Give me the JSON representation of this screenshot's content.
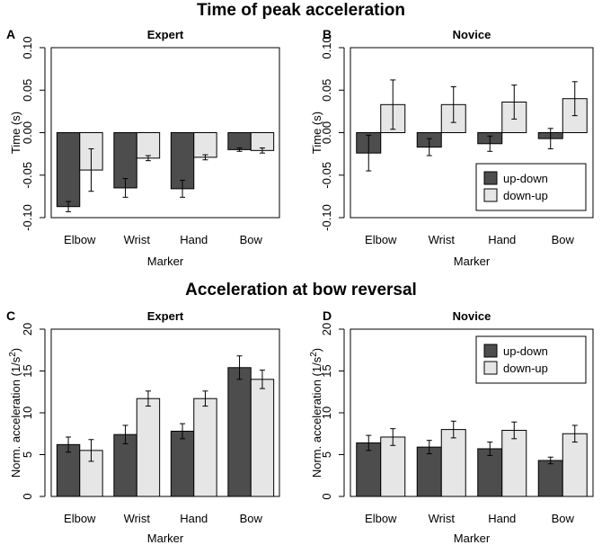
{
  "figure": {
    "section_titles": [
      "Time of peak acceleration",
      "Acceleration at bow reversal"
    ]
  },
  "chart_data": [
    {
      "type": "bar",
      "panel": "A",
      "title": "Expert",
      "xlabel": "Marker",
      "ylabel": "Time (s)",
      "ylim": [
        -0.1,
        0.1
      ],
      "yticks": [
        -0.1,
        -0.05,
        0.0,
        0.05,
        0.1
      ],
      "ytick_labels": [
        "-0.10",
        "-0.05",
        "0.00",
        "0.05",
        "0.10"
      ],
      "categories": [
        "Elbow",
        "Wrist",
        "Hand",
        "Bow"
      ],
      "series": [
        {
          "name": "up-down",
          "color": "#4d4d4d",
          "values": [
            -0.087,
            -0.065,
            -0.066,
            -0.02
          ],
          "errors": [
            0.006,
            0.011,
            0.01,
            0.002
          ]
        },
        {
          "name": "down-up",
          "color": "#e6e6e6",
          "values": [
            -0.044,
            -0.03,
            -0.029,
            -0.021
          ],
          "errors": [
            0.025,
            0.003,
            0.003,
            0.003
          ]
        }
      ],
      "legend": null
    },
    {
      "type": "bar",
      "panel": "B",
      "title": "Novice",
      "xlabel": "Marker",
      "ylabel": "Time (s)",
      "ylim": [
        -0.1,
        0.1
      ],
      "yticks": [
        -0.1,
        -0.05,
        0.0,
        0.05,
        0.1
      ],
      "ytick_labels": [
        "-0.10",
        "-0.05",
        "0.00",
        "0.05",
        "0.10"
      ],
      "categories": [
        "Elbow",
        "Wrist",
        "Hand",
        "Bow"
      ],
      "series": [
        {
          "name": "up-down",
          "color": "#4d4d4d",
          "values": [
            -0.024,
            -0.017,
            -0.013,
            -0.007
          ],
          "errors": [
            0.021,
            0.01,
            0.009,
            0.012
          ]
        },
        {
          "name": "down-up",
          "color": "#e6e6e6",
          "values": [
            0.033,
            0.033,
            0.036,
            0.04
          ],
          "errors": [
            0.029,
            0.021,
            0.02,
            0.02
          ]
        }
      ],
      "legend": {
        "position": "bottom-right",
        "entries": [
          "up-down",
          "down-up"
        ]
      }
    },
    {
      "type": "bar",
      "panel": "C",
      "title": "Expert",
      "xlabel": "Marker",
      "ylabel": "Norm. acceleration (1/s",
      "ylabel_superscript": "2",
      "ylabel_close": ")",
      "ylim": [
        0,
        20
      ],
      "yticks": [
        0,
        5,
        10,
        15,
        20
      ],
      "ytick_labels": [
        "0",
        "5",
        "10",
        "15",
        "20"
      ],
      "categories": [
        "Elbow",
        "Wrist",
        "Hand",
        "Bow"
      ],
      "series": [
        {
          "name": "up-down",
          "color": "#4d4d4d",
          "values": [
            6.2,
            7.4,
            7.8,
            15.4
          ],
          "errors": [
            0.9,
            1.1,
            0.9,
            1.4
          ]
        },
        {
          "name": "down-up",
          "color": "#e6e6e6",
          "values": [
            5.5,
            11.7,
            11.7,
            14.0
          ],
          "errors": [
            1.3,
            0.9,
            0.9,
            1.1
          ]
        }
      ],
      "legend": null
    },
    {
      "type": "bar",
      "panel": "D",
      "title": "Novice",
      "xlabel": "Marker",
      "ylabel": "Norm. acceleration (1/s",
      "ylabel_superscript": "2",
      "ylabel_close": ")",
      "ylim": [
        0,
        20
      ],
      "yticks": [
        0,
        5,
        10,
        15,
        20
      ],
      "ytick_labels": [
        "0",
        "5",
        "10",
        "15",
        "20"
      ],
      "categories": [
        "Elbow",
        "Wrist",
        "Hand",
        "Bow"
      ],
      "series": [
        {
          "name": "up-down",
          "color": "#4d4d4d",
          "values": [
            6.4,
            5.9,
            5.7,
            4.3
          ],
          "errors": [
            0.9,
            0.8,
            0.8,
            0.4
          ]
        },
        {
          "name": "down-up",
          "color": "#e6e6e6",
          "values": [
            7.1,
            8.0,
            7.9,
            7.5
          ],
          "errors": [
            1.0,
            1.0,
            1.0,
            1.0
          ]
        }
      ],
      "legend": {
        "position": "top-right",
        "entries": [
          "up-down",
          "down-up"
        ]
      }
    }
  ]
}
